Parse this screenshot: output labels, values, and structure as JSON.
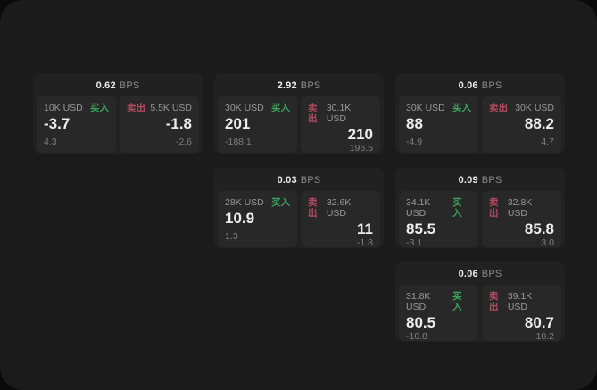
{
  "colors": {
    "outer_background": "#0a0a0a",
    "surface": "#1b1b1b",
    "card": "#212121",
    "panel": "#282828",
    "buy_accent": "#3ba55d",
    "sell_accent": "#b64a60",
    "text_primary": "#ededed",
    "text_muted": "#8e8e8e"
  },
  "labels": {
    "bps_unit": "BPS",
    "buy": "买入",
    "sell": "卖出"
  },
  "cards": [
    {
      "bps": "0.62",
      "buy": {
        "notional": "10K USD",
        "price": "-3.7",
        "delta": "4.3"
      },
      "sell": {
        "notional": "5.5K USD",
        "price": "-1.8",
        "delta": "-2.6"
      }
    },
    {
      "bps": "2.92",
      "buy": {
        "notional": "30K USD",
        "price": "201",
        "delta": "-188.1"
      },
      "sell": {
        "notional": "30.1K USD",
        "price": "210",
        "delta": "196.5"
      }
    },
    {
      "bps": "0.06",
      "buy": {
        "notional": "30K USD",
        "price": "88",
        "delta": "-4.9"
      },
      "sell": {
        "notional": "30K USD",
        "price": "88.2",
        "delta": "4.7"
      }
    },
    {
      "bps": "0.03",
      "buy": {
        "notional": "28K USD",
        "price": "10.9",
        "delta": "1.3"
      },
      "sell": {
        "notional": "32.6K USD",
        "price": "11",
        "delta": "-1.8"
      }
    },
    {
      "bps": "0.09",
      "buy": {
        "notional": "34.1K USD",
        "price": "85.5",
        "delta": "-3.1"
      },
      "sell": {
        "notional": "32.8K USD",
        "price": "85.8",
        "delta": "3.0"
      }
    },
    {
      "bps": "0.06",
      "buy": {
        "notional": "31.8K USD",
        "price": "80.5",
        "delta": "-10.8"
      },
      "sell": {
        "notional": "39.1K USD",
        "price": "80.7",
        "delta": "10.2"
      }
    }
  ]
}
